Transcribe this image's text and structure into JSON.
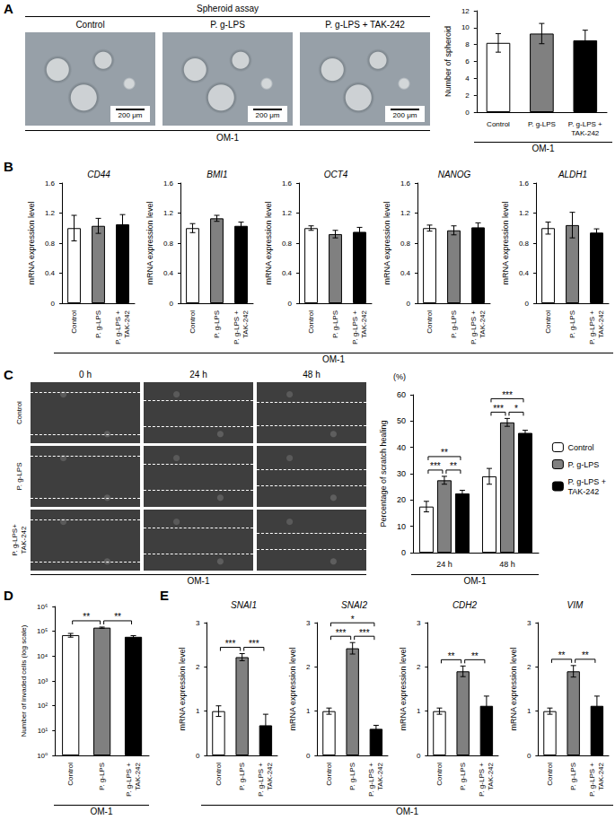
{
  "figure": {
    "A": {
      "letter": "A",
      "title": "Spheroid assay",
      "images": [
        "Control",
        "P. g-LPS",
        "P. g-LPS + TAK-242"
      ],
      "scale_bar": "200 μm",
      "cell_line": "OM-1"
    },
    "B": {
      "letter": "B",
      "cell_line": "OM-1"
    },
    "C": {
      "letter": "C",
      "columns": [
        "0 h",
        "24 h",
        "48 h"
      ],
      "rows": [
        "Control",
        "P. g-LPS",
        "P. g-LPS+TAK-242"
      ],
      "cell_line": "OM-1"
    },
    "D": {
      "letter": "D"
    },
    "E": {
      "letter": "E",
      "cell_line": "OM-1"
    }
  },
  "chart_data": [
    {
      "type": "bar",
      "categories": [
        "Control",
        "P. g-LPS",
        "P. g-LPS + TAK-242"
      ],
      "values": [
        8.2,
        9.3,
        8.5
      ],
      "errors": [
        1.1,
        1.2,
        1.2
      ],
      "colors": [
        "#ffffff",
        "#808080",
        "#000000"
      ],
      "ylabel": "Number of spheroid",
      "xlabel": "OM-1",
      "ylim": [
        0,
        12
      ],
      "yticks": [
        0,
        2,
        4,
        6,
        8,
        10,
        12
      ],
      "grid": false
    },
    {
      "type": "bar",
      "title": "CD44",
      "categories": [
        "Control",
        "P. g-LPS",
        "P. g-LPS + TAK-242"
      ],
      "values": [
        1.0,
        1.03,
        1.05
      ],
      "errors": [
        0.17,
        0.1,
        0.13
      ],
      "colors": [
        "#ffffff",
        "#808080",
        "#000000"
      ],
      "ylabel": "mRNA expression level",
      "ylim": [
        0,
        1.6
      ],
      "yticks": [
        0,
        0.4,
        0.8,
        1.2,
        1.6
      ],
      "grid": false
    },
    {
      "type": "bar",
      "title": "BMI1",
      "categories": [
        "Control",
        "P. g-LPS",
        "P. g-LPS + TAK-242"
      ],
      "values": [
        1.0,
        1.13,
        1.03
      ],
      "errors": [
        0.06,
        0.04,
        0.05
      ],
      "colors": [
        "#ffffff",
        "#808080",
        "#000000"
      ],
      "ylabel": "mRNA expression level",
      "ylim": [
        0,
        1.6
      ],
      "yticks": [
        0,
        0.4,
        0.8,
        1.2,
        1.6
      ],
      "grid": false
    },
    {
      "type": "bar",
      "title": "OCT4",
      "categories": [
        "Control",
        "P. g-LPS",
        "P. g-LPS + TAK-242"
      ],
      "values": [
        1.0,
        0.92,
        0.95
      ],
      "errors": [
        0.03,
        0.05,
        0.06
      ],
      "colors": [
        "#ffffff",
        "#808080",
        "#000000"
      ],
      "ylabel": "mRNA expression level",
      "ylim": [
        0,
        1.6
      ],
      "yticks": [
        0,
        0.4,
        0.8,
        1.2,
        1.6
      ],
      "grid": false
    },
    {
      "type": "bar",
      "title": "NANOG",
      "categories": [
        "Control",
        "P. g-LPS",
        "P. g-LPS + TAK-242"
      ],
      "values": [
        1.0,
        0.97,
        1.01
      ],
      "errors": [
        0.04,
        0.06,
        0.06
      ],
      "colors": [
        "#ffffff",
        "#808080",
        "#000000"
      ],
      "ylabel": "mRNA expression level",
      "ylim": [
        0,
        1.6
      ],
      "yticks": [
        0,
        0.4,
        0.8,
        1.2,
        1.6
      ],
      "grid": false
    },
    {
      "type": "bar",
      "title": "ALDH1",
      "categories": [
        "Control",
        "P. g-LPS",
        "P. g-LPS + TAK-242"
      ],
      "values": [
        1.0,
        1.04,
        0.94
      ],
      "errors": [
        0.08,
        0.17,
        0.05
      ],
      "colors": [
        "#ffffff",
        "#808080",
        "#000000"
      ],
      "ylabel": "mRNA expression level",
      "ylim": [
        0,
        1.6
      ],
      "yticks": [
        0,
        0.4,
        0.8,
        1.2,
        1.6
      ],
      "grid": false
    },
    {
      "type": "bar",
      "categories": [
        "24 h",
        "48 h"
      ],
      "series": [
        {
          "name": "Control",
          "color": "#ffffff",
          "values": [
            17.5,
            29
          ],
          "errors": [
            2,
            3
          ]
        },
        {
          "name": "P. g-LPS",
          "color": "#808080",
          "values": [
            27.5,
            49.5
          ],
          "errors": [
            1.5,
            1.5
          ]
        },
        {
          "name": "P. g-LPS + TAK-242",
          "color": "#000000",
          "values": [
            22.5,
            45.5
          ],
          "errors": [
            1.2,
            1
          ]
        }
      ],
      "ylabel": "Percentage of scratch healing",
      "yunit": "(%)",
      "xlabel": "OM-1",
      "ylim": [
        0,
        60
      ],
      "yticks": [
        0,
        10,
        20,
        30,
        40,
        50,
        60
      ],
      "grid": false,
      "legend": "right",
      "significance": [
        {
          "group": "24 h",
          "between": [
            "Control",
            "P. g-LPS"
          ],
          "label": "***"
        },
        {
          "group": "24 h",
          "between": [
            "P. g-LPS",
            "P. g-LPS + TAK-242"
          ],
          "label": "**"
        },
        {
          "group": "24 h",
          "between": [
            "Control",
            "P. g-LPS + TAK-242"
          ],
          "label": "**"
        },
        {
          "group": "48 h",
          "between": [
            "Control",
            "P. g-LPS"
          ],
          "label": "***"
        },
        {
          "group": "48 h",
          "between": [
            "P. g-LPS",
            "P. g-LPS + TAK-242"
          ],
          "label": "*"
        },
        {
          "group": "48 h",
          "between": [
            "Control",
            "P. g-LPS + TAK-242"
          ],
          "label": "***"
        }
      ]
    },
    {
      "type": "bar",
      "log": "y",
      "categories": [
        "Control",
        "P. g-LPS",
        "P. g-LPS + TAK-242"
      ],
      "values": [
        70000,
        140000,
        60000
      ],
      "errors": [
        12000,
        8000,
        7000
      ],
      "colors": [
        "#ffffff",
        "#808080",
        "#000000"
      ],
      "ylabel": "Number of invaded cells (log scale)",
      "xlabel": "OM-1",
      "ylim": [
        1,
        1000000
      ],
      "yticks": [
        {
          "value": 1,
          "label": "10⁰"
        },
        {
          "value": 10,
          "label": "10¹"
        },
        {
          "value": 100,
          "label": "10²"
        },
        {
          "value": 1000,
          "label": "10³"
        },
        {
          "value": 10000,
          "label": "10⁴"
        },
        {
          "value": 100000,
          "label": "10⁵"
        },
        {
          "value": 1000000,
          "label": "10⁶"
        }
      ],
      "grid": false,
      "significance": [
        {
          "between": [
            "Control",
            "P. g-LPS"
          ],
          "label": "**"
        },
        {
          "between": [
            "P. g-LPS",
            "P. g-LPS + TAK-242"
          ],
          "label": "**"
        }
      ]
    },
    {
      "type": "bar",
      "title": "SNAI1",
      "categories": [
        "Control",
        "P. g-LPS",
        "P. g-LPS + TAK-242"
      ],
      "values": [
        1.0,
        2.22,
        0.68
      ],
      "errors": [
        0.12,
        0.08,
        0.25
      ],
      "colors": [
        "#ffffff",
        "#808080",
        "#000000"
      ],
      "ylabel": "mRNA expression level",
      "ylim": [
        0,
        3
      ],
      "yticks": [
        0,
        1,
        2,
        3
      ],
      "grid": false,
      "significance": [
        {
          "between": [
            "Control",
            "P. g-LPS"
          ],
          "label": "***"
        },
        {
          "between": [
            "P. g-LPS",
            "P. g-LPS + TAK-242"
          ],
          "label": "***"
        }
      ]
    },
    {
      "type": "bar",
      "title": "SNAI2",
      "categories": [
        "Control",
        "P. g-LPS",
        "P. g-LPS + TAK-242"
      ],
      "values": [
        1.0,
        2.42,
        0.6
      ],
      "errors": [
        0.07,
        0.13,
        0.08
      ],
      "colors": [
        "#ffffff",
        "#808080",
        "#000000"
      ],
      "ylabel": "mRNA expression level",
      "ylim": [
        0,
        3
      ],
      "yticks": [
        0,
        1,
        2,
        3
      ],
      "grid": false,
      "significance": [
        {
          "between": [
            "Control",
            "P. g-LPS"
          ],
          "label": "***"
        },
        {
          "between": [
            "Control",
            "P. g-LPS + TAK-242"
          ],
          "label": "*"
        },
        {
          "between": [
            "P. g-LPS",
            "P. g-LPS + TAK-242"
          ],
          "label": "***"
        }
      ]
    },
    {
      "type": "bar",
      "title": "CDH2",
      "categories": [
        "Control",
        "P. g-LPS",
        "P. g-LPS + TAK-242"
      ],
      "values": [
        1.0,
        1.9,
        1.12
      ],
      "errors": [
        0.07,
        0.12,
        0.22
      ],
      "colors": [
        "#ffffff",
        "#808080",
        "#000000"
      ],
      "ylabel": "mRNA expression level",
      "ylim": [
        0,
        3
      ],
      "yticks": [
        0,
        1,
        2,
        3
      ],
      "grid": false,
      "significance": [
        {
          "between": [
            "Control",
            "P. g-LPS"
          ],
          "label": "**"
        },
        {
          "between": [
            "P. g-LPS",
            "P. g-LPS + TAK-242"
          ],
          "label": "**"
        }
      ]
    },
    {
      "type": "bar",
      "title": "VIM",
      "categories": [
        "Control",
        "P. g-LPS",
        "P. g-LPS + TAK-242"
      ],
      "values": [
        1.0,
        1.9,
        1.12
      ],
      "errors": [
        0.07,
        0.13,
        0.22
      ],
      "colors": [
        "#ffffff",
        "#808080",
        "#000000"
      ],
      "ylabel": "mRNA expression level",
      "ylim": [
        0,
        3
      ],
      "yticks": [
        0,
        1,
        2,
        3
      ],
      "grid": false,
      "significance": [
        {
          "between": [
            "Control",
            "P. g-LPS"
          ],
          "label": "**"
        },
        {
          "between": [
            "P. g-LPS",
            "P. g-LPS + TAK-242"
          ],
          "label": "**"
        }
      ]
    }
  ]
}
